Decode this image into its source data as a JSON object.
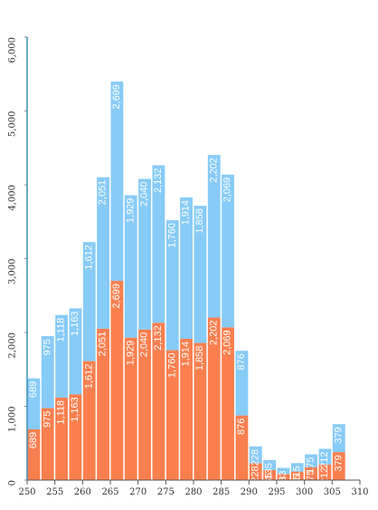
{
  "chart_data": {
    "type": "stacked_histogram",
    "bins": [
      250,
      252.5,
      255,
      257.5,
      260,
      262.5,
      265,
      267.5,
      270,
      272.5,
      275,
      277.5,
      280,
      282.5,
      285,
      287.5,
      290,
      292.5,
      295,
      297.5,
      300,
      302.5,
      305,
      307.5
    ],
    "series": [
      {
        "color": "#f97f4f",
        "values": [
          689,
          975,
          1118,
          1163,
          1612,
          2051,
          2699,
          1929,
          2040,
          2132,
          1760,
          1914,
          1858,
          2202,
          2069,
          876,
          228,
          135,
          83,
          115,
          175,
          212,
          379
        ],
        "value_labels": [
          "689",
          "975",
          "1,118",
          "1,163",
          "1,612",
          "2,051",
          "2,699",
          "1,929",
          "2,040",
          "2,132",
          "1,760",
          "1,914",
          "1,858",
          "2,202",
          "2,069",
          "876",
          "228",
          "135",
          "83",
          "115",
          "175",
          "212",
          "379"
        ]
      },
      {
        "color": "#87cbf7",
        "values": [
          689,
          975,
          1118,
          1163,
          1612,
          2051,
          2699,
          1929,
          2040,
          2132,
          1760,
          1914,
          1858,
          2202,
          2069,
          876,
          228,
          135,
          83,
          115,
          175,
          212,
          379
        ],
        "value_labels": [
          "689",
          "975",
          "1,118",
          "1,163",
          "1,612",
          "2,051",
          "2,699",
          "1,929",
          "2,040",
          "2,132",
          "1,760",
          "1,914",
          "1,858",
          "2,202",
          "2,069",
          "876",
          "228",
          "135",
          "83",
          "115",
          "175",
          "212",
          "379"
        ]
      }
    ],
    "xlim": [
      250,
      310
    ],
    "xticks": [
      250,
      255,
      260,
      265,
      270,
      275,
      280,
      285,
      290,
      295,
      300,
      305,
      310
    ],
    "ylim": [
      0,
      6000
    ],
    "yticks": [
      0,
      {
        "value": 1000,
        "label": "1,000"
      },
      {
        "value": 2000,
        "label": "2,000"
      },
      {
        "value": 3000,
        "label": "3,000"
      },
      {
        "value": 4000,
        "label": "4,000"
      },
      {
        "value": 5000,
        "label": "5,000"
      },
      {
        "value": 6000,
        "label": "6,000"
      }
    ]
  }
}
